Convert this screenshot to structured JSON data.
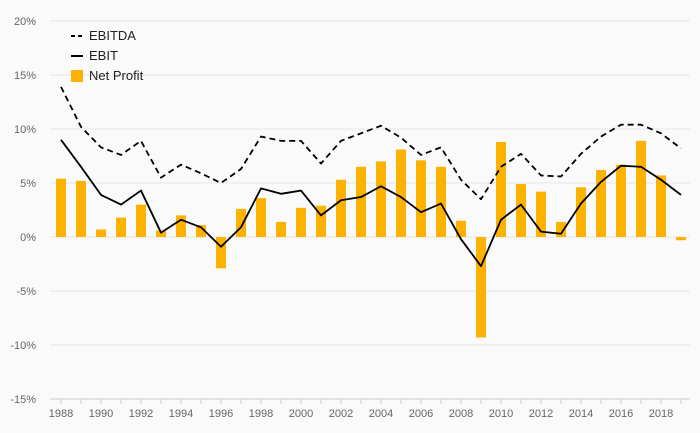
{
  "chart_data": {
    "type": "bar",
    "ylim": [
      -15,
      20
    ],
    "yticks": [
      -15,
      -10,
      -5,
      0,
      5,
      10,
      15,
      20
    ],
    "ytick_labels": [
      "-15%",
      "-10%",
      "-5%",
      "0%",
      "5%",
      "10%",
      "15%",
      "20%"
    ],
    "x": [
      1988,
      1989,
      1990,
      1991,
      1992,
      1993,
      1994,
      1995,
      1996,
      1997,
      1998,
      1999,
      2000,
      2001,
      2002,
      2003,
      2004,
      2005,
      2006,
      2007,
      2008,
      2009,
      2010,
      2011,
      2012,
      2013,
      2014,
      2015,
      2016,
      2017,
      2018,
      2019
    ],
    "xtick_labels": [
      "1988",
      "1990",
      "1992",
      "1994",
      "1996",
      "1998",
      "2000",
      "2002",
      "2004",
      "2006",
      "2008",
      "2010",
      "2012",
      "2014",
      "2016",
      "2018"
    ],
    "grid": true,
    "legend_position": "top-left",
    "series": [
      {
        "name": "EBITDA",
        "type": "line",
        "style": "dashed",
        "color": "#000000",
        "values": [
          13.9,
          10.2,
          8.3,
          7.6,
          8.9,
          5.5,
          6.7,
          5.9,
          5.0,
          6.3,
          9.3,
          8.9,
          8.9,
          6.8,
          8.9,
          9.6,
          10.3,
          9.2,
          7.6,
          8.3,
          5.3,
          3.5,
          6.5,
          7.7,
          5.7,
          5.6,
          7.7,
          9.3,
          10.4,
          10.4,
          9.6,
          8.2
        ]
      },
      {
        "name": "EBIT",
        "type": "line",
        "style": "solid",
        "color": "#000000",
        "values": [
          9.0,
          6.5,
          3.9,
          3.0,
          4.3,
          0.4,
          1.6,
          0.9,
          -0.9,
          0.9,
          4.5,
          4.0,
          4.3,
          2.0,
          3.4,
          3.7,
          4.7,
          3.7,
          2.3,
          3.1,
          -0.2,
          -2.7,
          1.6,
          3.0,
          0.5,
          0.3,
          3.1,
          5.1,
          6.6,
          6.5,
          5.3,
          3.9
        ]
      },
      {
        "name": "Net Profit",
        "type": "bar",
        "color": "#FDB202",
        "values": [
          5.4,
          5.2,
          0.7,
          1.8,
          3.0,
          0.6,
          2.0,
          1.1,
          -2.9,
          2.6,
          3.6,
          1.4,
          2.7,
          2.9,
          5.3,
          6.5,
          7.0,
          8.1,
          7.1,
          6.5,
          1.5,
          -9.3,
          8.8,
          4.9,
          4.2,
          1.4,
          4.6,
          6.2,
          6.7,
          8.9,
          5.7,
          -0.3
        ]
      }
    ]
  }
}
